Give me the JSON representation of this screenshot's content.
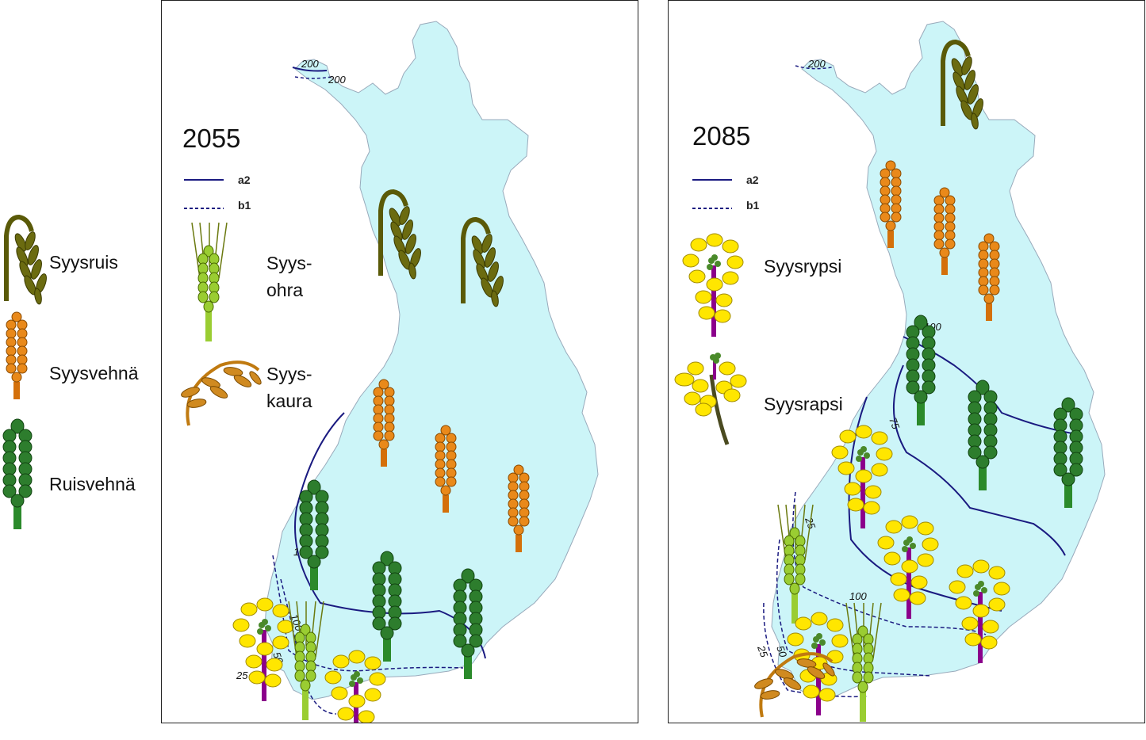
{
  "legend": {
    "syysruis": "Syysruis",
    "syysvehna": "Syysvehnä",
    "ruisvehna": "Ruisvehnä"
  },
  "panel_2055": {
    "year": "2055",
    "line_a2": "a2",
    "line_b1": "b1",
    "ohra_1": "Syys-",
    "ohra_2": "ohra",
    "kaura_1": "Syys-",
    "kaura_2": "kaura",
    "contours": [
      "200",
      "200",
      "100",
      "100",
      "25",
      "50"
    ]
  },
  "panel_2085": {
    "year": "2085",
    "line_a2": "a2",
    "line_b1": "b1",
    "rypsi": "Syysrypsi",
    "rapsi": "Syysrapsi",
    "contours": [
      "200",
      "100",
      "75",
      "100",
      "25",
      "25",
      "50"
    ]
  },
  "colors": {
    "sea": "#ffffff",
    "land": "#ccf5f8",
    "line": "#1a1a80",
    "rye": "#6b6b10",
    "wheat": "#e07c10",
    "triticale": "#2b7a2b",
    "barley": "#9acd32",
    "oat": "#c98a1a",
    "rapeseed": "#ffe600"
  }
}
